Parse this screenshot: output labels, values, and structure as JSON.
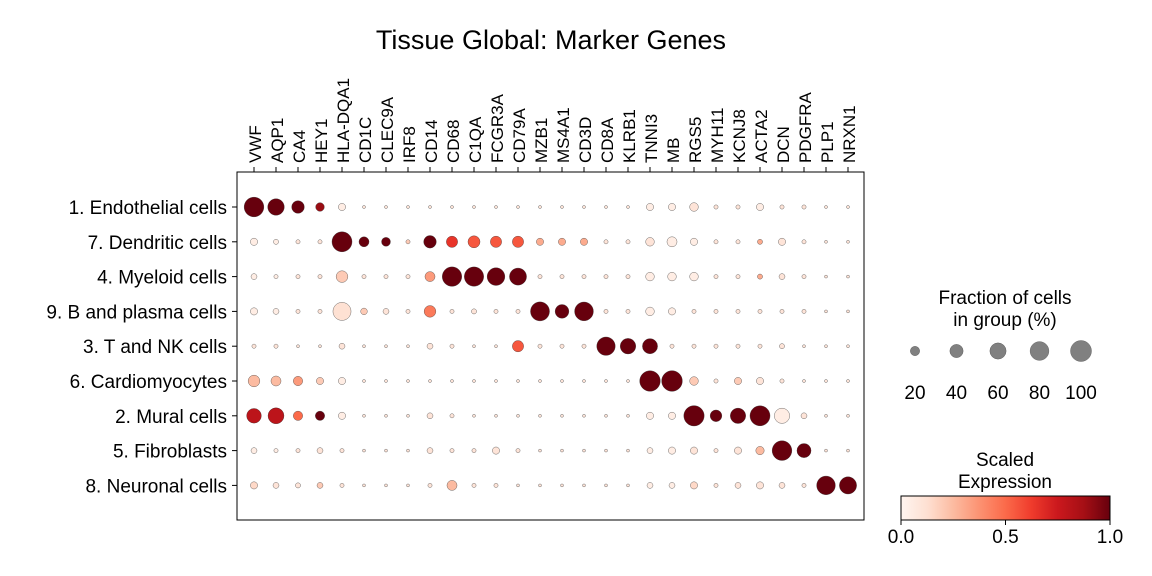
{
  "chart_data": {
    "type": "dotplot",
    "title": "Tissue Global: Marker Genes",
    "genes": [
      "VWF",
      "AQP1",
      "CA4",
      "HEY1",
      "HLA-DQA1",
      "CD1C",
      "CLEC9A",
      "IRF8",
      "CD14",
      "CD68",
      "C1QA",
      "FCGR3A",
      "CD79A",
      "MZB1",
      "MS4A1",
      "CD3D",
      "CD8A",
      "KLRB1",
      "TNNI3",
      "MB",
      "RGS5",
      "MYH11",
      "KCNJ8",
      "ACTA2",
      "DCN",
      "PDGFRA",
      "PLP1",
      "NRXN1"
    ],
    "groups": [
      "1. Endothelial cells",
      "7. Dendritic cells",
      "4. Myeloid cells",
      "9. B and plasma cells",
      "3. T and NK cells",
      "6. Cardiomyocytes",
      "2. Mural cells",
      "5. Fibroblasts",
      "8. Neuronal cells"
    ],
    "fraction_pct": [
      [
        88,
        62,
        36,
        17,
        12,
        2,
        2,
        2,
        2,
        2,
        2,
        2,
        2,
        2,
        2,
        2,
        2,
        2,
        12,
        12,
        17,
        4,
        4,
        12,
        4,
        4,
        2,
        2
      ],
      [
        12,
        6,
        4,
        4,
        91,
        23,
        18,
        4,
        36,
        29,
        33,
        29,
        29,
        12,
        12,
        12,
        4,
        4,
        17,
        23,
        12,
        4,
        4,
        6,
        12,
        4,
        2,
        2
      ],
      [
        8,
        4,
        4,
        4,
        31,
        4,
        4,
        4,
        23,
        86,
        85,
        71,
        66,
        4,
        4,
        4,
        4,
        4,
        17,
        17,
        17,
        4,
        4,
        6,
        8,
        4,
        2,
        2
      ],
      [
        12,
        8,
        4,
        4,
        74,
        10,
        8,
        4,
        31,
        4,
        6,
        4,
        4,
        82,
        43,
        80,
        4,
        4,
        17,
        12,
        4,
        4,
        4,
        4,
        4,
        4,
        2,
        2
      ],
      [
        4,
        4,
        2,
        2,
        8,
        2,
        2,
        2,
        8,
        4,
        2,
        2,
        29,
        4,
        4,
        4,
        77,
        55,
        52,
        4,
        4,
        4,
        4,
        4,
        6,
        2,
        2,
        2
      ],
      [
        31,
        23,
        20,
        12,
        12,
        2,
        2,
        2,
        2,
        2,
        2,
        2,
        2,
        2,
        2,
        2,
        2,
        2,
        96,
        97,
        17,
        4,
        12,
        12,
        4,
        2,
        2,
        2
      ],
      [
        49,
        58,
        20,
        20,
        12,
        2,
        2,
        2,
        8,
        4,
        2,
        2,
        2,
        2,
        2,
        2,
        2,
        2,
        12,
        12,
        94,
        31,
        54,
        91,
        53,
        8,
        2,
        2
      ],
      [
        8,
        4,
        4,
        8,
        4,
        2,
        2,
        2,
        8,
        4,
        4,
        12,
        4,
        2,
        2,
        2,
        2,
        2,
        8,
        12,
        12,
        4,
        12,
        16,
        88,
        45,
        2,
        2
      ],
      [
        12,
        8,
        6,
        8,
        4,
        2,
        2,
        2,
        4,
        23,
        4,
        4,
        2,
        2,
        2,
        2,
        2,
        2,
        8,
        8,
        12,
        4,
        8,
        12,
        8,
        4,
        79,
        67
      ]
    ],
    "scaled_expression": [
      [
        1.0,
        1.0,
        1.0,
        0.9,
        0.05,
        0.1,
        0.1,
        0.1,
        0.1,
        0.1,
        0.1,
        0.1,
        0.1,
        0.1,
        0.1,
        0.1,
        0.1,
        0.1,
        0.05,
        0.05,
        0.1,
        0.1,
        0.1,
        0.05,
        0.1,
        0.1,
        0.1,
        0.1
      ],
      [
        0.05,
        0.05,
        0.1,
        0.1,
        1.0,
        1.0,
        1.0,
        0.2,
        1.0,
        0.65,
        0.55,
        0.55,
        0.55,
        0.3,
        0.3,
        0.3,
        0.1,
        0.1,
        0.1,
        0.05,
        0.05,
        0.1,
        0.1,
        0.3,
        0.1,
        0.1,
        0.1,
        0.1
      ],
      [
        0.05,
        0.05,
        0.1,
        0.1,
        0.2,
        0.1,
        0.1,
        0.1,
        0.35,
        1.0,
        1.0,
        1.0,
        1.0,
        0.1,
        0.1,
        0.1,
        0.1,
        0.1,
        0.05,
        0.05,
        0.05,
        0.1,
        0.1,
        0.3,
        0.1,
        0.1,
        0.1,
        0.1
      ],
      [
        0.05,
        0.05,
        0.1,
        0.1,
        0.12,
        0.2,
        0.1,
        0.1,
        0.45,
        0.1,
        0.1,
        0.1,
        0.1,
        1.0,
        1.0,
        1.0,
        0.1,
        0.1,
        0.05,
        0.05,
        0.1,
        0.1,
        0.1,
        0.1,
        0.1,
        0.1,
        0.1,
        0.1
      ],
      [
        0.1,
        0.1,
        0.1,
        0.1,
        0.1,
        0.1,
        0.1,
        0.1,
        0.1,
        0.1,
        0.1,
        0.1,
        0.55,
        0.1,
        0.1,
        0.1,
        1.0,
        1.0,
        1.0,
        0.1,
        0.1,
        0.1,
        0.1,
        0.1,
        0.1,
        0.1,
        0.1,
        0.1
      ],
      [
        0.25,
        0.25,
        0.35,
        0.2,
        0.05,
        0.1,
        0.1,
        0.1,
        0.1,
        0.1,
        0.1,
        0.1,
        0.1,
        0.1,
        0.1,
        0.1,
        0.1,
        0.1,
        1.0,
        1.0,
        0.2,
        0.1,
        0.2,
        0.1,
        0.1,
        0.1,
        0.1,
        0.1
      ],
      [
        0.8,
        0.8,
        0.5,
        1.0,
        0.05,
        0.1,
        0.1,
        0.1,
        0.1,
        0.1,
        0.1,
        0.1,
        0.1,
        0.1,
        0.1,
        0.1,
        0.1,
        0.1,
        0.05,
        0.05,
        1.0,
        1.0,
        1.0,
        1.0,
        0.05,
        0.1,
        0.1,
        0.1
      ],
      [
        0.05,
        0.05,
        0.1,
        0.1,
        0.1,
        0.1,
        0.1,
        0.1,
        0.1,
        0.1,
        0.1,
        0.1,
        0.1,
        0.1,
        0.1,
        0.1,
        0.1,
        0.1,
        0.05,
        0.05,
        0.1,
        0.1,
        0.1,
        0.25,
        1.0,
        1.0,
        0.1,
        0.1
      ],
      [
        0.15,
        0.1,
        0.1,
        0.2,
        0.1,
        0.1,
        0.1,
        0.1,
        0.1,
        0.25,
        0.1,
        0.1,
        0.1,
        0.1,
        0.1,
        0.1,
        0.1,
        0.1,
        0.05,
        0.05,
        0.15,
        0.1,
        0.1,
        0.1,
        0.1,
        0.1,
        1.0,
        1.0
      ]
    ],
    "size_legend": {
      "title": "Fraction of cells\nin group (%)",
      "values": [
        20,
        40,
        60,
        80,
        100
      ]
    },
    "color_legend": {
      "title": "Scaled\nExpression",
      "ticks": [
        "0.0",
        "0.5",
        "1.0"
      ],
      "range": [
        0,
        1
      ]
    },
    "colors": {
      "low": "#fff5f0",
      "mid": "#fb6a4a",
      "high": "#67000d",
      "size_legend_dot": "#808080"
    }
  }
}
